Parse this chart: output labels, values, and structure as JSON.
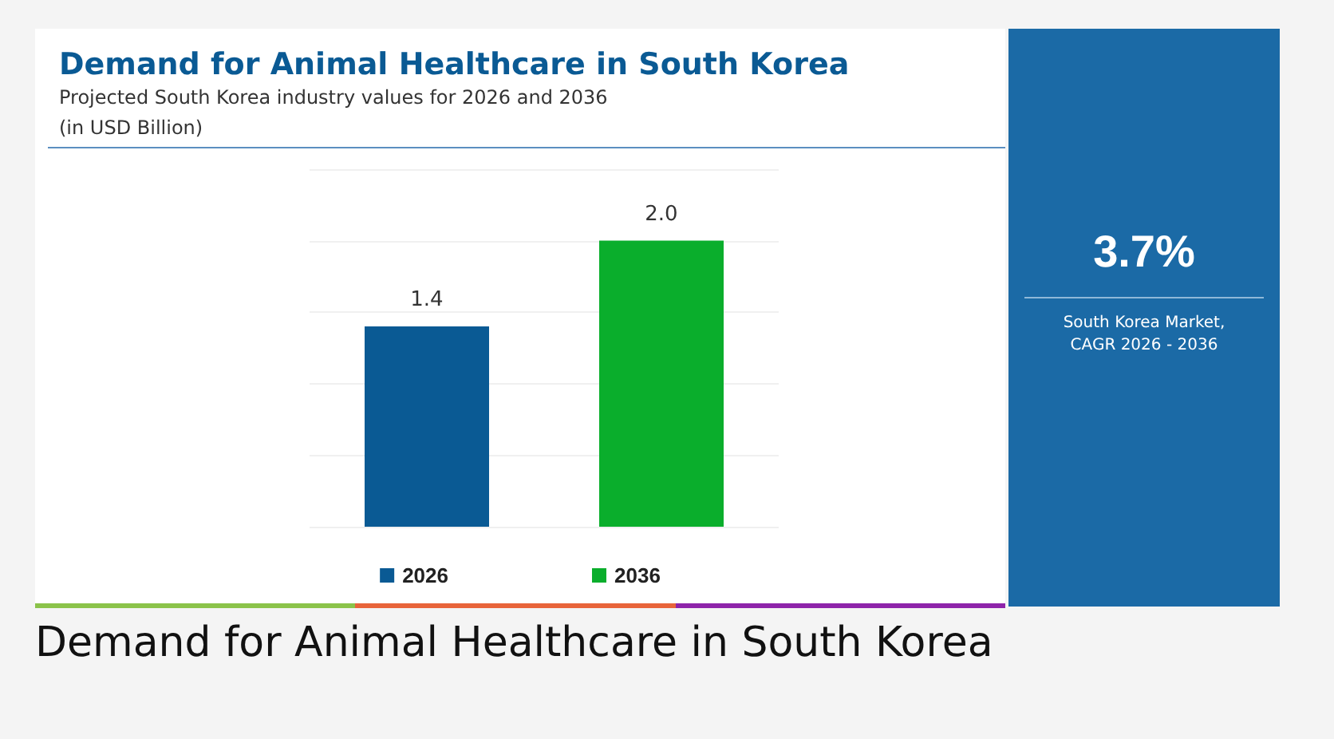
{
  "chart_data": {
    "type": "bar",
    "title": "Demand for Animal Healthcare in South Korea",
    "subtitle": "Projected South Korea industry values for 2026 and 2036",
    "categories": [
      null,
      null
    ],
    "series": [
      {
        "name": "2026",
        "color": "#0a5a94",
        "values": [
          1.4,
          null
        ],
        "value_labels": [
          "1.4",
          null
        ]
      },
      {
        "name": "2036",
        "color": "#0aae2c",
        "values": [
          null,
          2.0
        ],
        "value_labels": [
          null,
          "2.0"
        ]
      }
    ],
    "stacked": true,
    "ylim": [
      0,
      2.5
    ],
    "yticks": [
      {
        "value": 0,
        "label": null
      },
      {
        "value": 0.5,
        "label": null
      },
      {
        "value": 1,
        "label": null
      },
      {
        "value": 1.5,
        "label": null
      },
      {
        "value": 2,
        "label": null
      },
      {
        "value": 2.5,
        "label": null
      }
    ],
    "grid": "y",
    "legend": "bottom",
    "annotations": [
      "(in USD Billion)",
      "3.7%",
      "South Korea Market, CAGR 2026 - 2036",
      "Demand for Animal Healthcare in South Korea"
    ]
  }
}
